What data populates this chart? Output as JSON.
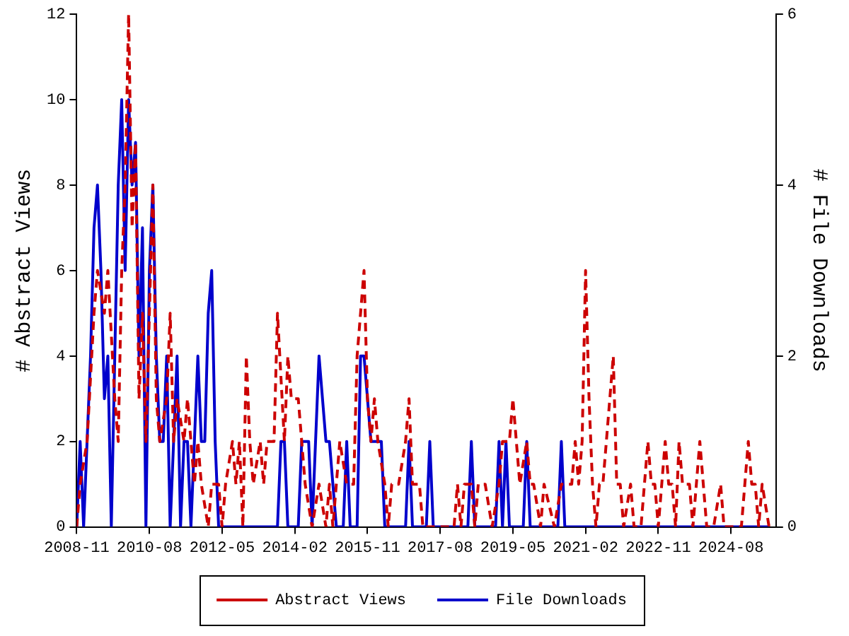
{
  "chart_data": {
    "type": "line",
    "ylabel": "# Abstract Views",
    "y2label": "# File Downloads",
    "xlim": [
      "2008-11",
      "2025-09"
    ],
    "xticks": [
      "2008-11",
      "2010-08",
      "2012-05",
      "2014-02",
      "2015-11",
      "2017-08",
      "2019-05",
      "2021-02",
      "2022-11",
      "2024-08"
    ],
    "ylim": [
      0,
      12
    ],
    "yticks": [
      0,
      2,
      4,
      6,
      8,
      10,
      12
    ],
    "y2lim": [
      0,
      6
    ],
    "y2ticks": [
      0,
      2,
      4,
      6
    ],
    "grid": false,
    "legend": "bottom",
    "marker": "none",
    "series": [
      {
        "name": "Abstract Views",
        "color": "#cc0000",
        "line_style": "dashed",
        "x": [
          "2008-11",
          "2008-12",
          "2009-02",
          "2009-04",
          "2009-05",
          "2009-07",
          "2009-08",
          "2009-10",
          "2009-11",
          "2009-12",
          "2010-01",
          "2010-02",
          "2010-03",
          "2010-04",
          "2010-05",
          "2010-06",
          "2010-07",
          "2010-09",
          "2010-10",
          "2010-11",
          "2011-01",
          "2011-02",
          "2011-03",
          "2011-04",
          "2011-06",
          "2011-07",
          "2011-08",
          "2011-09",
          "2011-10",
          "2011-11",
          "2012-01",
          "2012-02",
          "2012-04",
          "2012-05",
          "2012-06",
          "2012-08",
          "2012-09",
          "2012-10",
          "2012-11",
          "2012-12",
          "2013-01",
          "2013-02",
          "2013-04",
          "2013-05",
          "2013-06",
          "2013-08",
          "2013-09",
          "2013-11",
          "2013-12",
          "2014-01",
          "2014-03",
          "2014-04",
          "2014-05",
          "2014-07",
          "2014-09",
          "2014-11",
          "2014-12",
          "2015-01",
          "2015-03",
          "2015-05",
          "2015-07",
          "2015-08",
          "2015-10",
          "2015-11",
          "2015-12",
          "2016-01",
          "2016-02",
          "2016-04",
          "2016-05",
          "2016-06",
          "2016-08",
          "2016-10",
          "2016-11",
          "2016-12",
          "2017-02",
          "2017-03",
          "2017-12",
          "2018-01",
          "2018-02",
          "2018-03",
          "2018-05",
          "2018-06",
          "2018-07",
          "2018-09",
          "2018-11",
          "2019-01",
          "2019-02",
          "2019-04",
          "2019-05",
          "2019-06",
          "2019-07",
          "2019-09",
          "2019-10",
          "2019-11",
          "2020-01",
          "2020-02",
          "2020-05",
          "2020-07",
          "2020-08",
          "2020-10",
          "2020-11",
          "2020-12",
          "2021-01",
          "2021-02",
          "2021-03",
          "2021-04",
          "2021-05",
          "2021-06",
          "2021-07",
          "2021-10",
          "2021-11",
          "2021-12",
          "2022-01",
          "2022-03",
          "2022-04",
          "2022-06",
          "2022-08",
          "2022-09",
          "2022-10",
          "2022-11",
          "2022-12",
          "2023-01",
          "2023-02",
          "2023-03",
          "2023-04",
          "2023-05",
          "2023-06",
          "2023-07",
          "2023-08",
          "2023-09",
          "2023-10",
          "2023-11",
          "2023-12",
          "2024-01",
          "2024-03",
          "2024-05",
          "2024-06",
          "2024-08",
          "2024-11",
          "2024-12",
          "2025-01",
          "2025-02",
          "2025-03",
          "2025-04",
          "2025-05",
          "2025-07"
        ],
        "values": [
          0,
          1,
          2,
          5,
          6,
          5,
          6,
          3,
          2,
          6,
          8,
          12,
          7,
          9,
          3,
          5,
          2,
          8,
          3,
          2,
          3,
          5,
          2,
          3,
          2,
          3,
          2,
          1,
          2,
          1,
          0,
          1,
          1,
          0,
          1,
          2,
          1,
          2,
          0,
          4,
          2,
          1,
          2,
          1,
          2,
          2,
          5,
          2,
          4,
          3,
          3,
          2,
          1,
          0,
          1,
          0,
          1,
          0,
          2,
          1,
          1,
          4,
          6,
          3,
          2,
          3,
          2,
          1,
          0,
          1,
          1,
          2,
          3,
          1,
          1,
          0,
          0,
          1,
          0,
          1,
          1,
          0,
          1,
          1,
          0,
          1,
          2,
          2,
          3,
          2,
          1,
          2,
          1,
          1,
          0,
          1,
          0,
          1,
          1,
          1,
          2,
          1,
          2,
          6,
          3,
          1,
          0,
          1,
          1,
          4,
          1,
          1,
          0,
          1,
          0,
          0,
          2,
          1,
          1,
          0,
          1,
          2,
          1,
          1,
          0,
          2,
          1,
          1,
          1,
          0,
          1,
          2,
          1,
          0,
          0,
          1,
          0,
          0,
          0,
          1,
          2,
          1,
          1,
          0,
          1,
          0
        ]
      },
      {
        "name": "File Downloads",
        "color": "#0000cc",
        "line_style": "solid",
        "axis": "y2",
        "x": [
          "2008-11",
          "2008-12",
          "2009-01",
          "2009-02",
          "2009-03",
          "2009-04",
          "2009-05",
          "2009-06",
          "2009-07",
          "2009-08",
          "2009-09",
          "2009-10",
          "2009-11",
          "2009-12",
          "2010-01",
          "2010-02",
          "2010-03",
          "2010-04",
          "2010-05",
          "2010-06",
          "2010-07",
          "2010-08",
          "2010-09",
          "2010-10",
          "2010-11",
          "2010-12",
          "2011-01",
          "2011-02",
          "2011-03",
          "2011-04",
          "2011-05",
          "2011-06",
          "2011-07",
          "2011-08",
          "2011-09",
          "2011-10",
          "2011-11",
          "2011-12",
          "2012-01",
          "2012-02",
          "2012-03",
          "2012-04",
          "2013-09",
          "2013-10",
          "2013-11",
          "2013-12",
          "2014-03",
          "2014-04",
          "2014-05",
          "2014-06",
          "2014-07",
          "2014-08",
          "2014-09",
          "2014-10",
          "2014-11",
          "2014-12",
          "2015-01",
          "2015-02",
          "2015-04",
          "2015-05",
          "2015-06",
          "2015-08",
          "2015-09",
          "2015-10",
          "2015-11",
          "2015-12",
          "2016-01",
          "2016-02",
          "2016-03",
          "2016-04",
          "2016-10",
          "2016-11",
          "2016-12",
          "2017-04",
          "2017-05",
          "2017-06",
          "2018-04",
          "2018-05",
          "2018-06",
          "2018-12",
          "2019-01",
          "2019-02",
          "2019-03",
          "2019-04",
          "2019-08",
          "2019-09",
          "2019-10",
          "2020-06",
          "2020-07",
          "2020-08",
          "2025-07"
        ],
        "values": [
          0,
          1,
          0,
          1,
          2,
          3.5,
          4,
          3,
          1.5,
          2,
          0,
          2,
          4,
          5,
          3,
          5,
          4,
          4.5,
          2,
          3.5,
          0,
          3,
          4,
          2,
          1,
          1,
          2,
          0,
          1,
          2,
          0,
          1,
          1,
          0,
          1,
          2,
          1,
          1,
          2.5,
          3,
          1,
          0,
          0,
          1,
          1,
          0,
          0,
          1,
          1,
          1,
          0,
          1,
          2,
          1.5,
          1,
          1,
          0.5,
          0,
          0,
          1,
          0,
          0,
          2,
          2,
          1.5,
          1,
          1,
          1,
          1,
          0,
          0,
          1,
          0,
          0,
          1,
          0,
          0,
          1,
          0,
          0,
          1,
          0,
          1,
          0,
          0,
          1,
          0,
          0,
          1,
          0,
          0
        ]
      }
    ]
  }
}
